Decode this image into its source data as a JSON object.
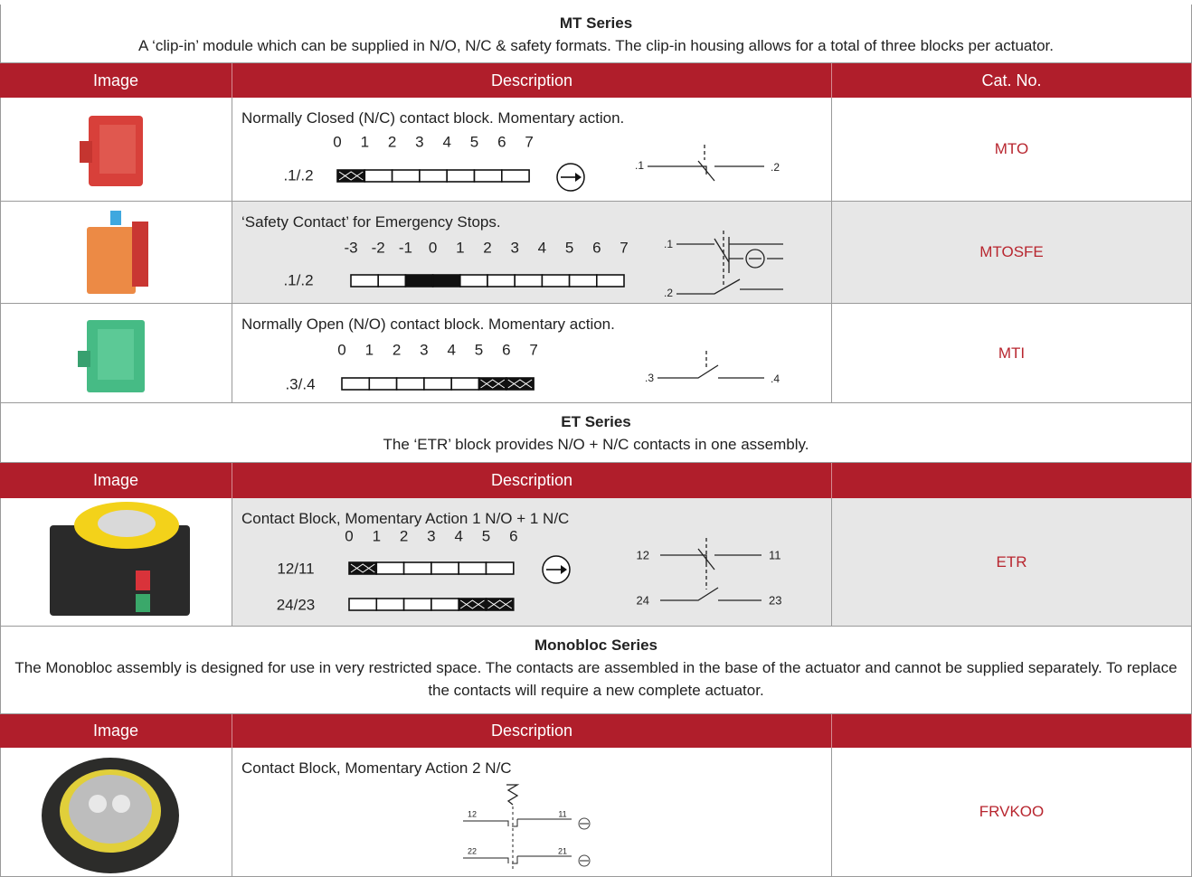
{
  "sections": [
    {
      "title": "MT Series",
      "description": "A ‘clip-in’ module which can be supplied in N/O, N/C & safety formats. The clip-in housing allows for a total of three blocks per actuator.",
      "header": [
        "Image",
        "Description",
        "Cat. No."
      ],
      "rows": [
        {
          "description": "Normally Closed (N/C) contact block. Momentary action.",
          "scale": [
            "0",
            "1",
            "2",
            "3",
            "4",
            "5",
            "6",
            "7"
          ],
          "contacts": [
            ".1/.2"
          ],
          "terminals": [
            ".1",
            ".2"
          ],
          "cat_no": "MTO"
        },
        {
          "description": "‘Safety Contact’ for Emergency Stops.",
          "scale": [
            "-3",
            "-2",
            "-1",
            "0",
            "1",
            "2",
            "3",
            "4",
            "5",
            "6",
            "7"
          ],
          "contacts": [
            ".1/.2"
          ],
          "terminals": [
            ".1",
            ".2"
          ],
          "cat_no": "MTOSFE"
        },
        {
          "description": "Normally Open (N/O) contact block. Momentary action.",
          "scale": [
            "0",
            "1",
            "2",
            "3",
            "4",
            "5",
            "6",
            "7"
          ],
          "contacts": [
            ".3/.4"
          ],
          "terminals": [
            ".3",
            ".4"
          ],
          "cat_no": "MTI"
        }
      ]
    },
    {
      "title": "ET Series",
      "description": "The ‘ETR’ block provides  N/O + N/C contacts in one assembly.",
      "header": [
        "Image",
        "Description"
      ],
      "rows": [
        {
          "description": "Contact Block, Momentary Action 1 N/O + 1 N/C",
          "scale": [
            "0",
            "1",
            "2",
            "3",
            "4",
            "5",
            "6"
          ],
          "contacts": [
            "12/11",
            "24/23"
          ],
          "terminals": [
            "12",
            "11",
            "24",
            "23"
          ],
          "cat_no": "ETR"
        }
      ]
    },
    {
      "title": "Monobloc Series",
      "description": "The Monobloc assembly is designed for use in very restricted space. The contacts are assembled in the base of the actuator and cannot be supplied separately. To replace the contacts will require a new complete actuator.",
      "header": [
        "Image",
        "Description"
      ],
      "rows": [
        {
          "description": "Contact Block, Momentary Action 2 N/C",
          "terminals": [
            "12",
            "11",
            "22",
            "21"
          ],
          "cat_no": "FRVKOO"
        }
      ]
    }
  ]
}
